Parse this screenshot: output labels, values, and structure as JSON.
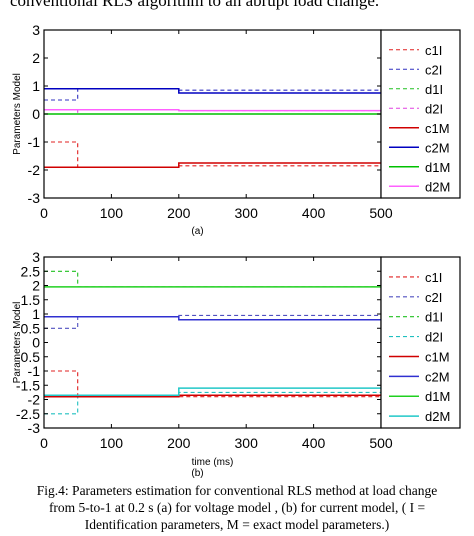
{
  "header_text": "conventional RLS algorithm to an abrupt load change.",
  "caption": {
    "line1": "Fig.4: Parameters estimation for conventional RLS method at load change",
    "line2": "from 5-to-1 at 0.2 s (a) for voltage model , (b) for current model,  ( I =",
    "line3": "Identification parameters, M = exact model parameters.)"
  },
  "chart_data": [
    {
      "type": "line",
      "panel_label": "(a)",
      "xlabel": "",
      "ylabel": "Parameters Model",
      "xlim": [
        0,
        500
      ],
      "ylim": [
        -3,
        3
      ],
      "xticks": [
        0,
        100,
        200,
        300,
        400,
        500
      ],
      "yticks": [
        -3,
        -2,
        -1,
        0,
        1,
        2,
        3
      ],
      "grid": false,
      "legend_position": "right",
      "series": [
        {
          "name": "c1I",
          "color": "#e02020",
          "dash": true,
          "x": [
            0,
            50,
            50,
            200,
            200,
            500
          ],
          "y": [
            -1.0,
            -1.0,
            -1.9,
            -1.9,
            -1.85,
            -1.85
          ]
        },
        {
          "name": "c2I",
          "color": "#3030c0",
          "dash": true,
          "x": [
            0,
            50,
            50,
            200,
            200,
            500
          ],
          "y": [
            0.5,
            0.5,
            0.9,
            0.9,
            0.85,
            0.85
          ]
        },
        {
          "name": "d1I",
          "color": "#20c020",
          "dash": true,
          "x": [
            0,
            500
          ],
          "y": [
            0,
            0
          ]
        },
        {
          "name": "d2I",
          "color": "#e040e0",
          "dash": true,
          "x": [
            0,
            50,
            50,
            200,
            200,
            500
          ],
          "y": [
            0.0,
            0.0,
            0.15,
            0.15,
            0.12,
            0.12
          ]
        },
        {
          "name": "c1M",
          "color": "#d00000",
          "dash": false,
          "x": [
            0,
            200,
            200,
            500
          ],
          "y": [
            -1.9,
            -1.9,
            -1.75,
            -1.75
          ]
        },
        {
          "name": "c2M",
          "color": "#0000c0",
          "dash": false,
          "x": [
            0,
            200,
            200,
            500
          ],
          "y": [
            0.9,
            0.9,
            0.75,
            0.75
          ]
        },
        {
          "name": "d1M",
          "color": "#00c000",
          "dash": false,
          "x": [
            0,
            500
          ],
          "y": [
            0,
            0
          ]
        },
        {
          "name": "d2M",
          "color": "#ff60ff",
          "dash": false,
          "x": [
            0,
            200,
            200,
            500
          ],
          "y": [
            0.15,
            0.15,
            0.12,
            0.12
          ]
        }
      ]
    },
    {
      "type": "line",
      "panel_label": "(b)",
      "xlabel": "time (ms)",
      "ylabel": "Parameters Model",
      "xlim": [
        0,
        500
      ],
      "ylim": [
        -3,
        3
      ],
      "xticks": [
        0,
        100,
        200,
        300,
        400,
        500
      ],
      "yticks": [
        -3,
        -2.5,
        -2,
        -1.5,
        -1,
        -0.5,
        0,
        0.5,
        1,
        1.5,
        2,
        2.5,
        3
      ],
      "grid": false,
      "legend_position": "right",
      "series": [
        {
          "name": "c1I",
          "color": "#e02020",
          "dash": true,
          "x": [
            0,
            50,
            50,
            200,
            200,
            500
          ],
          "y": [
            -1.0,
            -1.0,
            -1.9,
            -1.9,
            -1.9,
            -1.9
          ]
        },
        {
          "name": "c2I",
          "color": "#5050c0",
          "dash": true,
          "x": [
            0,
            50,
            50,
            200,
            200,
            500
          ],
          "y": [
            0.5,
            0.5,
            0.9,
            0.9,
            0.95,
            0.95
          ]
        },
        {
          "name": "d1I",
          "color": "#20c020",
          "dash": true,
          "x": [
            0,
            50,
            50,
            500
          ],
          "y": [
            2.5,
            2.5,
            1.95,
            1.95
          ]
        },
        {
          "name": "d2I",
          "color": "#20c0c0",
          "dash": true,
          "x": [
            0,
            50,
            50,
            200,
            200,
            500
          ],
          "y": [
            -2.5,
            -2.5,
            -1.85,
            -1.85,
            -1.75,
            -1.75
          ]
        },
        {
          "name": "c1M",
          "color": "#d00000",
          "dash": false,
          "x": [
            0,
            200,
            200,
            500
          ],
          "y": [
            -1.9,
            -1.9,
            -1.85,
            -1.85
          ]
        },
        {
          "name": "c2M",
          "color": "#3030d0",
          "dash": false,
          "x": [
            0,
            200,
            200,
            500
          ],
          "y": [
            0.9,
            0.9,
            0.8,
            0.8
          ]
        },
        {
          "name": "d1M",
          "color": "#20d020",
          "dash": false,
          "x": [
            0,
            500
          ],
          "y": [
            1.95,
            1.95
          ]
        },
        {
          "name": "d2M",
          "color": "#20c8c8",
          "dash": false,
          "x": [
            0,
            200,
            200,
            500
          ],
          "y": [
            -1.85,
            -1.85,
            -1.6,
            -1.6
          ]
        }
      ]
    }
  ]
}
